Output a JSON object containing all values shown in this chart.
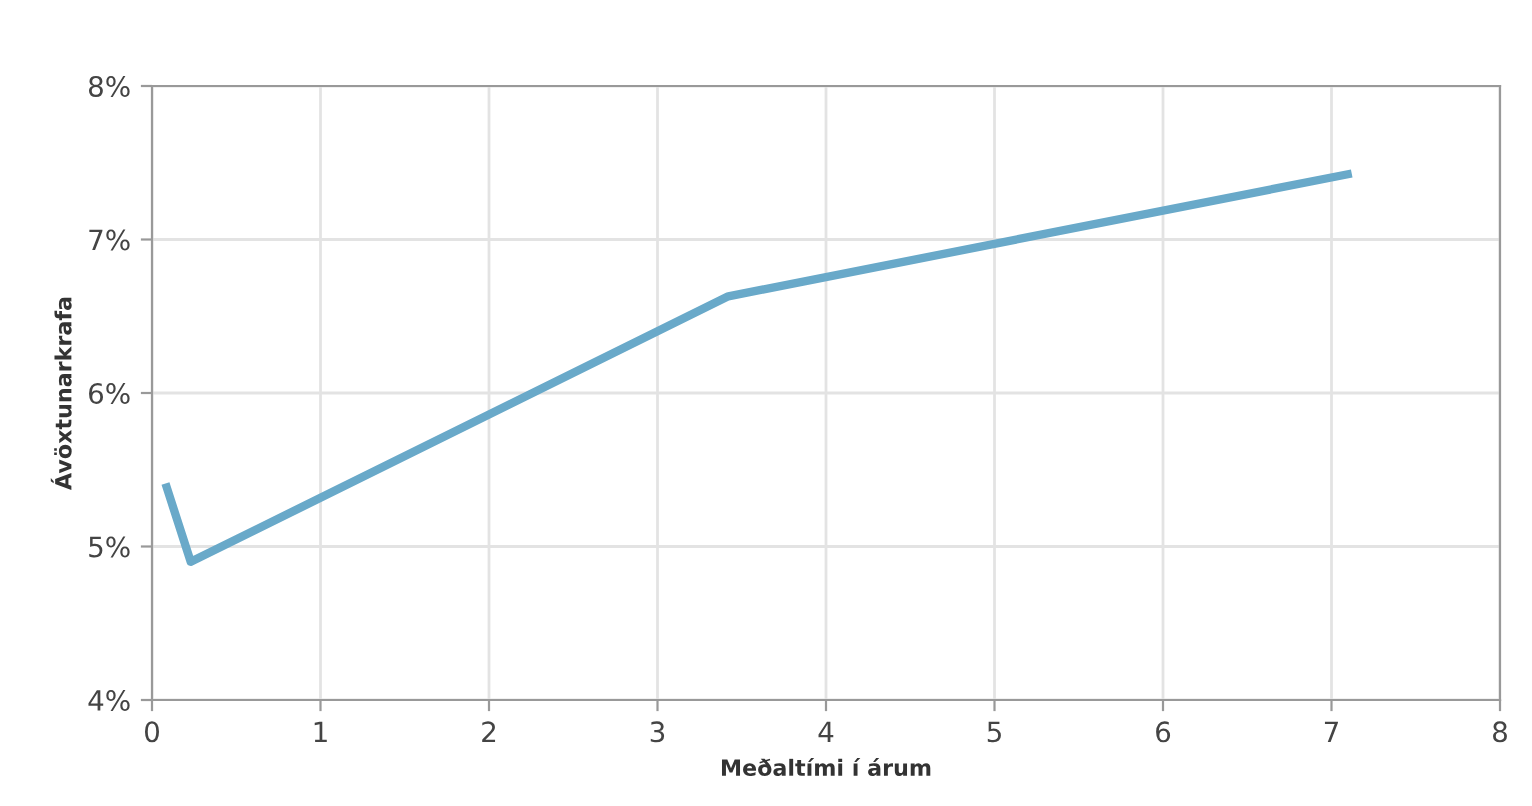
{
  "chart_data": {
    "type": "line",
    "xlabel": "Meðaltími í árum",
    "ylabel": "Ávöxtunarkrafa",
    "series": [
      {
        "color": "#69a9c9",
        "x": [
          0.08,
          0.23,
          3.42,
          7.12
        ],
        "values": [
          5.41,
          4.9,
          6.63,
          7.43
        ]
      }
    ],
    "xlim": [
      0,
      8
    ],
    "xticks": [
      0,
      1,
      2,
      3,
      4,
      5,
      6,
      7,
      8
    ],
    "ylim": [
      4,
      8
    ],
    "yticks": [
      {
        "value": 4,
        "label": "4%"
      },
      {
        "value": 5,
        "label": "5%"
      },
      {
        "value": 6,
        "label": "6%"
      },
      {
        "value": 7,
        "label": "7%"
      },
      {
        "value": 8,
        "label": "8%"
      }
    ],
    "grid": true,
    "marker": "none",
    "line_style": "solid"
  }
}
